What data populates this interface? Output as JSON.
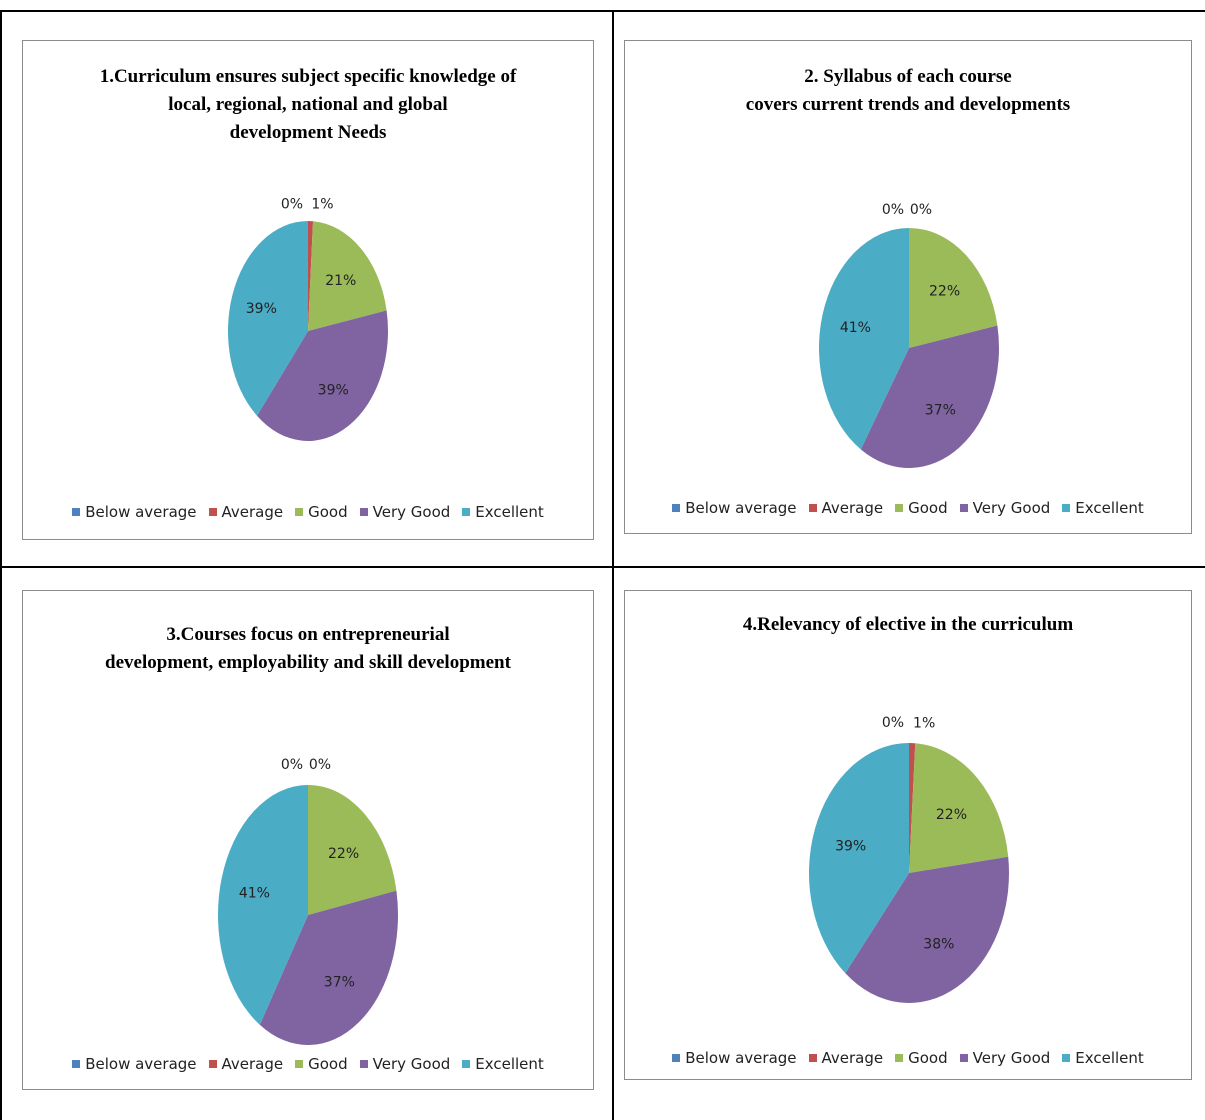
{
  "legend": [
    "Below average",
    "Average",
    "Good",
    "Very Good",
    "Excellent"
  ],
  "colors": {
    "below_average": "#4f81bd",
    "average": "#c0504d",
    "good": "#9bbb59",
    "very_good": "#8064a2",
    "excellent": "#4bacc6"
  },
  "chart_data": [
    {
      "type": "pie",
      "title_lines": [
        "1.Curriculum ensures subject specific knowledge of",
        "local, regional, national and global",
        "development Needs"
      ],
      "categories": [
        "Below average",
        "Average",
        "Good",
        "Very Good",
        "Excellent"
      ],
      "values": [
        0,
        1,
        21,
        39,
        39
      ],
      "labels": [
        "0%",
        "1%",
        "21%",
        "39%",
        "39%"
      ]
    },
    {
      "type": "pie",
      "title_lines": [
        "2. Syllabus of each course",
        "covers current trends and developments"
      ],
      "categories": [
        "Below average",
        "Average",
        "Good",
        "Very Good",
        "Excellent"
      ],
      "values": [
        0,
        0,
        22,
        37,
        41
      ],
      "labels": [
        "0%",
        "0%",
        "22%",
        "37%",
        "41%"
      ]
    },
    {
      "type": "pie",
      "title_lines": [
        "3.Courses focus on entrepreneurial",
        "development, employability and skill development"
      ],
      "categories": [
        "Below average",
        "Average",
        "Good",
        "Very Good",
        "Excellent"
      ],
      "values": [
        0,
        0,
        22,
        37,
        41
      ],
      "labels": [
        "0%",
        "0%",
        "22%",
        "37%",
        "41%"
      ]
    },
    {
      "type": "pie",
      "title_lines": [
        "4.Relevancy of elective in the curriculum"
      ],
      "categories": [
        "Below average",
        "Average",
        "Good",
        "Very Good",
        "Excellent"
      ],
      "values": [
        0,
        1,
        22,
        38,
        39
      ],
      "labels": [
        "0%",
        "1%",
        "22%",
        "38%",
        "39%"
      ]
    }
  ]
}
